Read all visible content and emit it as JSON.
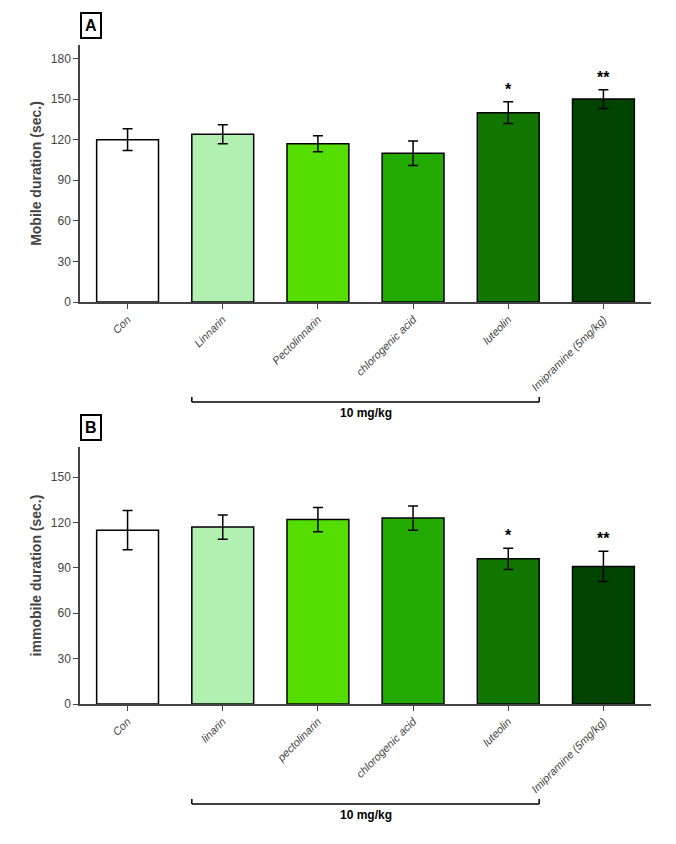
{
  "chart_data": [
    {
      "type": "bar",
      "title": "A",
      "ylabel": "Mobile duration (sec.)",
      "categories": [
        "Con",
        "Linnarin",
        "Pectolinnarin",
        "chlorogenic acid",
        "luteolin",
        "Imipramine (5mg/kg)"
      ],
      "values": [
        120,
        124,
        117,
        110,
        140,
        150
      ],
      "errors": [
        8,
        7,
        6,
        9,
        8,
        7
      ],
      "colors": [
        "#ffffff",
        "#b2f0b2",
        "#55dd00",
        "#22aa00",
        "#117700",
        "#004400"
      ],
      "ylim": [
        0,
        190
      ],
      "yticks": [
        0,
        30,
        60,
        90,
        120,
        150,
        180
      ],
      "grid": false,
      "annotations": [
        {
          "text": "*",
          "category": "luteolin"
        },
        {
          "text": "**",
          "category": "Imipramine (5mg/kg)"
        },
        {
          "text": "10 mg/kg",
          "from": "Linnarin",
          "to": "luteolin"
        }
      ]
    },
    {
      "type": "bar",
      "title": "B",
      "ylabel": "immobile duration (sec.)",
      "categories": [
        "Con",
        "linarin",
        "pectolinarin",
        "chlorogenic acid",
        "luteolin",
        "Imipramine (5mg/kg)"
      ],
      "values": [
        115,
        117,
        122,
        123,
        96,
        91
      ],
      "errors": [
        13,
        8,
        8,
        8,
        7,
        10
      ],
      "colors": [
        "#ffffff",
        "#b2f0b2",
        "#55dd00",
        "#22aa00",
        "#117700",
        "#004400"
      ],
      "ylim": [
        0,
        170
      ],
      "yticks": [
        0,
        30,
        60,
        90,
        120,
        150
      ],
      "grid": false,
      "annotations": [
        {
          "text": "*",
          "category": "luteolin"
        },
        {
          "text": "**",
          "category": "Imipramine (5mg/kg)"
        },
        {
          "text": "10 mg/kg",
          "from": "linarin",
          "to": "luteolin"
        }
      ]
    }
  ]
}
